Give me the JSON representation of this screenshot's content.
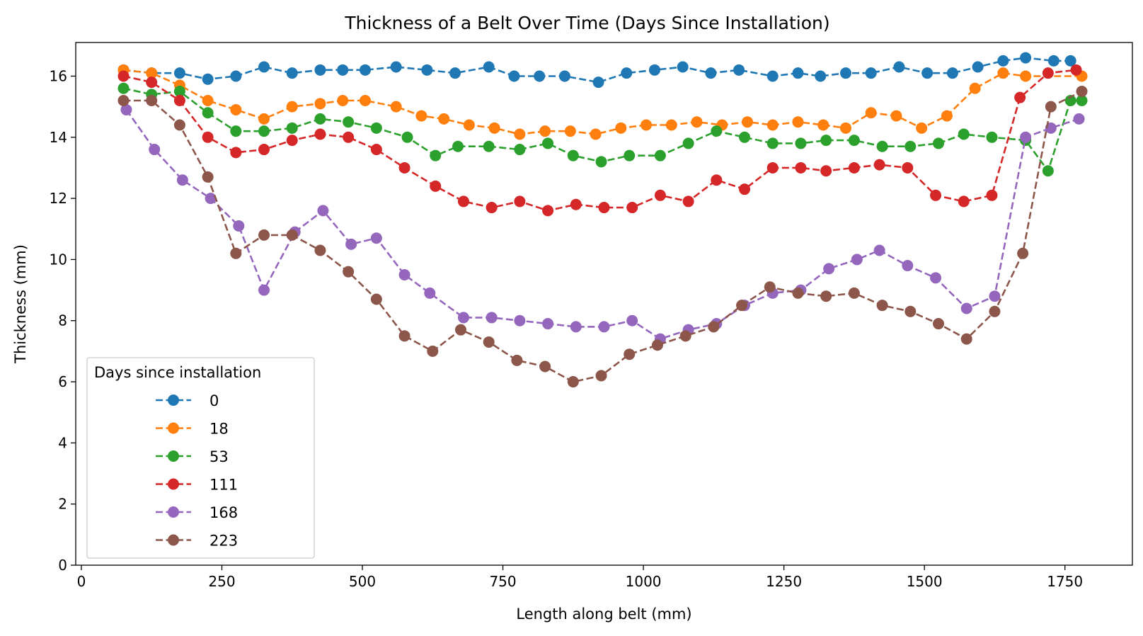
{
  "chart_data": {
    "type": "line",
    "title": "Thickness of a Belt Over Time (Days Since Installation)",
    "xlabel": "Length along belt (mm)",
    "ylabel": "Thickness (mm)",
    "xlim": [
      -10,
      1870
    ],
    "ylim": [
      0,
      17.1
    ],
    "xticks": [
      0,
      250,
      500,
      750,
      1000,
      1250,
      1500,
      1750
    ],
    "yticks": [
      0,
      2,
      4,
      6,
      8,
      10,
      12,
      14,
      16
    ],
    "grid": false,
    "legend": {
      "title": "Days since installation",
      "position": "lower-left"
    },
    "series": [
      {
        "name": "0",
        "color": "#1f77b4",
        "x": [
          75,
          125,
          175,
          225,
          275,
          325,
          375,
          425,
          465,
          505,
          560,
          615,
          665,
          725,
          770,
          815,
          860,
          920,
          970,
          1020,
          1070,
          1120,
          1170,
          1230,
          1275,
          1315,
          1360,
          1405,
          1455,
          1505,
          1550,
          1595,
          1640,
          1680,
          1730,
          1760
        ],
        "y": [
          16.2,
          16.1,
          16.1,
          15.9,
          16.0,
          16.3,
          16.1,
          16.2,
          16.2,
          16.2,
          16.3,
          16.2,
          16.1,
          16.3,
          16.0,
          16.0,
          16.0,
          15.8,
          16.1,
          16.2,
          16.3,
          16.1,
          16.2,
          16.0,
          16.1,
          16.0,
          16.1,
          16.1,
          16.3,
          16.1,
          16.1,
          16.3,
          16.5,
          16.6,
          16.5,
          16.5
        ]
      },
      {
        "name": "18",
        "color": "#ff7f0e",
        "x": [
          75,
          125,
          175,
          225,
          275,
          325,
          375,
          425,
          465,
          505,
          560,
          605,
          645,
          690,
          735,
          780,
          825,
          870,
          915,
          960,
          1005,
          1050,
          1095,
          1140,
          1185,
          1230,
          1275,
          1320,
          1360,
          1405,
          1450,
          1495,
          1540,
          1590,
          1640,
          1680,
          1780
        ],
        "y": [
          16.2,
          16.1,
          15.7,
          15.2,
          14.9,
          14.6,
          15.0,
          15.1,
          15.2,
          15.2,
          15.0,
          14.7,
          14.6,
          14.4,
          14.3,
          14.1,
          14.2,
          14.2,
          14.1,
          14.3,
          14.4,
          14.4,
          14.5,
          14.4,
          14.5,
          14.4,
          14.5,
          14.4,
          14.3,
          14.8,
          14.7,
          14.3,
          14.7,
          15.6,
          16.1,
          16.0,
          16.0
        ]
      },
      {
        "name": "53",
        "color": "#2ca02c",
        "x": [
          75,
          125,
          175,
          225,
          275,
          325,
          375,
          425,
          475,
          525,
          580,
          630,
          670,
          725,
          780,
          830,
          875,
          925,
          975,
          1030,
          1080,
          1130,
          1180,
          1230,
          1280,
          1325,
          1375,
          1425,
          1475,
          1525,
          1570,
          1620,
          1680,
          1720,
          1760,
          1780
        ],
        "y": [
          15.6,
          15.4,
          15.5,
          14.8,
          14.2,
          14.2,
          14.3,
          14.6,
          14.5,
          14.3,
          14.0,
          13.4,
          13.7,
          13.7,
          13.6,
          13.8,
          13.4,
          13.2,
          13.4,
          13.4,
          13.8,
          14.2,
          14.0,
          13.8,
          13.8,
          13.9,
          13.9,
          13.7,
          13.7,
          13.8,
          14.1,
          14.0,
          13.9,
          12.9,
          15.2,
          15.2
        ]
      },
      {
        "name": "111",
        "color": "#d62728",
        "x": [
          75,
          125,
          175,
          225,
          275,
          325,
          375,
          425,
          475,
          525,
          575,
          630,
          680,
          730,
          780,
          830,
          880,
          930,
          980,
          1030,
          1080,
          1130,
          1180,
          1230,
          1280,
          1325,
          1375,
          1420,
          1470,
          1520,
          1570,
          1620,
          1670,
          1720,
          1770
        ],
        "y": [
          16.0,
          15.8,
          15.2,
          14.0,
          13.5,
          13.6,
          13.9,
          14.1,
          14.0,
          13.6,
          13.0,
          12.4,
          11.9,
          11.7,
          11.9,
          11.6,
          11.8,
          11.7,
          11.7,
          12.1,
          11.9,
          12.6,
          12.3,
          13.0,
          13.0,
          12.9,
          13.0,
          13.1,
          13.0,
          12.1,
          11.9,
          12.1,
          15.3,
          16.1,
          16.2
        ]
      },
      {
        "name": "168",
        "color": "#9467bd",
        "x": [
          80,
          130,
          180,
          230,
          280,
          325,
          380,
          430,
          480,
          525,
          575,
          620,
          680,
          730,
          780,
          830,
          880,
          930,
          980,
          1030,
          1080,
          1130,
          1180,
          1230,
          1280,
          1330,
          1380,
          1420,
          1470,
          1520,
          1575,
          1625,
          1680,
          1725,
          1775
        ],
        "y": [
          14.9,
          13.6,
          12.6,
          12.0,
          11.1,
          9.0,
          10.9,
          11.6,
          10.5,
          10.7,
          9.5,
          8.9,
          8.1,
          8.1,
          8.0,
          7.9,
          7.8,
          7.8,
          8.0,
          7.4,
          7.7,
          7.9,
          8.5,
          8.9,
          9.0,
          9.7,
          10.0,
          10.3,
          9.8,
          9.4,
          8.4,
          8.8,
          14.0,
          14.3,
          14.6
        ]
      },
      {
        "name": "223",
        "color": "#8c564b",
        "x": [
          75,
          125,
          175,
          225,
          275,
          325,
          375,
          425,
          475,
          525,
          575,
          625,
          675,
          725,
          775,
          825,
          875,
          925,
          975,
          1025,
          1075,
          1125,
          1175,
          1225,
          1275,
          1325,
          1375,
          1425,
          1475,
          1525,
          1575,
          1625,
          1675,
          1725,
          1780
        ],
        "y": [
          15.2,
          15.2,
          14.4,
          12.7,
          10.2,
          10.8,
          10.8,
          10.3,
          9.6,
          8.7,
          7.5,
          7.0,
          7.7,
          7.3,
          6.7,
          6.5,
          6.0,
          6.2,
          6.9,
          7.2,
          7.5,
          7.8,
          8.5,
          9.1,
          8.9,
          8.8,
          8.9,
          8.5,
          8.3,
          7.9,
          7.4,
          8.3,
          10.2,
          15.0,
          15.5
        ]
      }
    ]
  }
}
